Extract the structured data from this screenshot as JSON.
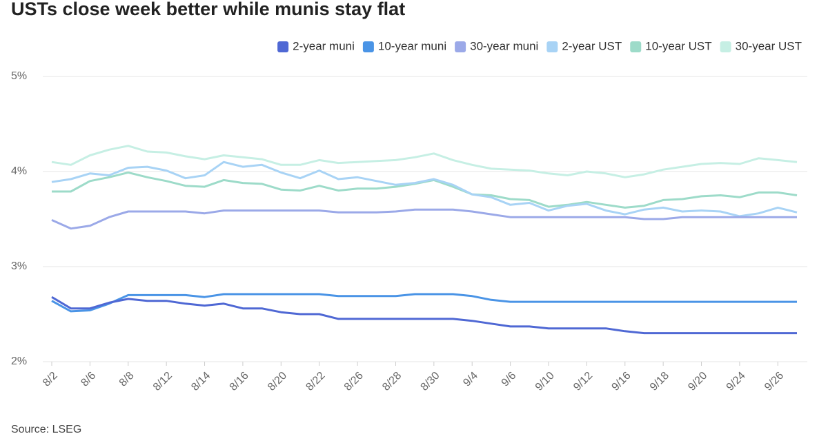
{
  "chart_data": {
    "type": "line",
    "title": "USTs close week better while munis stay flat",
    "source": "Source: LSEG",
    "categories": [
      "8/2",
      null,
      "8/6",
      null,
      "8/8",
      null,
      "8/12",
      null,
      "8/14",
      null,
      "8/16",
      null,
      "8/20",
      null,
      "8/22",
      null,
      "8/26",
      null,
      "8/28",
      null,
      "8/30",
      null,
      "9/4",
      null,
      "9/6",
      null,
      "9/10",
      null,
      "9/12",
      null,
      "9/16",
      null,
      "9/18",
      null,
      "9/20",
      null,
      "9/24",
      null,
      "9/26",
      null
    ],
    "ylim": [
      2,
      5
    ],
    "yticks": [
      {
        "value": 2,
        "label": "2%"
      },
      {
        "value": 3,
        "label": "3%"
      },
      {
        "value": 4,
        "label": "4%"
      },
      {
        "value": 5,
        "label": "5%"
      }
    ],
    "grid": true,
    "legend_position": "top-right",
    "series": [
      {
        "name": "2-year muni",
        "color": "#4f68d4",
        "values": [
          2.68,
          2.56,
          2.56,
          2.62,
          2.66,
          2.64,
          2.64,
          2.61,
          2.59,
          2.61,
          2.56,
          2.56,
          2.52,
          2.5,
          2.5,
          2.45,
          2.45,
          2.45,
          2.45,
          2.45,
          2.45,
          2.45,
          2.43,
          2.4,
          2.37,
          2.37,
          2.35,
          2.35,
          2.35,
          2.35,
          2.32,
          2.3,
          2.3,
          2.3,
          2.3,
          2.3,
          2.3,
          2.3,
          2.3,
          2.3
        ]
      },
      {
        "name": "10-year muni",
        "color": "#4a94e6",
        "values": [
          2.64,
          2.53,
          2.54,
          2.61,
          2.7,
          2.7,
          2.7,
          2.7,
          2.68,
          2.71,
          2.71,
          2.71,
          2.71,
          2.71,
          2.71,
          2.69,
          2.69,
          2.69,
          2.69,
          2.71,
          2.71,
          2.71,
          2.69,
          2.65,
          2.63,
          2.63,
          2.63,
          2.63,
          2.63,
          2.63,
          2.63,
          2.63,
          2.63,
          2.63,
          2.63,
          2.63,
          2.63,
          2.63,
          2.63,
          2.63
        ]
      },
      {
        "name": "30-year muni",
        "color": "#9ba9e8",
        "values": [
          3.49,
          3.4,
          3.43,
          3.52,
          3.58,
          3.58,
          3.58,
          3.58,
          3.56,
          3.59,
          3.59,
          3.59,
          3.59,
          3.59,
          3.59,
          3.57,
          3.57,
          3.57,
          3.58,
          3.6,
          3.6,
          3.6,
          3.58,
          3.55,
          3.52,
          3.52,
          3.52,
          3.52,
          3.52,
          3.52,
          3.52,
          3.5,
          3.5,
          3.52,
          3.52,
          3.52,
          3.52,
          3.52,
          3.52,
          3.52
        ]
      },
      {
        "name": "2-year UST",
        "color": "#a8d3f5",
        "values": [
          3.89,
          3.92,
          3.98,
          3.96,
          4.04,
          4.05,
          4.01,
          3.93,
          3.96,
          4.1,
          4.05,
          4.07,
          3.99,
          3.93,
          4.01,
          3.92,
          3.94,
          3.9,
          3.86,
          3.88,
          3.92,
          3.86,
          3.76,
          3.73,
          3.65,
          3.67,
          3.59,
          3.64,
          3.66,
          3.59,
          3.55,
          3.6,
          3.62,
          3.58,
          3.59,
          3.58,
          3.53,
          3.56,
          3.62,
          3.57
        ]
      },
      {
        "name": "10-year UST",
        "color": "#9ddbc9",
        "values": [
          3.79,
          3.79,
          3.9,
          3.94,
          3.99,
          3.94,
          3.9,
          3.85,
          3.84,
          3.91,
          3.88,
          3.87,
          3.81,
          3.8,
          3.85,
          3.8,
          3.82,
          3.82,
          3.84,
          3.87,
          3.91,
          3.84,
          3.76,
          3.75,
          3.71,
          3.7,
          3.63,
          3.65,
          3.68,
          3.65,
          3.62,
          3.64,
          3.7,
          3.71,
          3.74,
          3.75,
          3.73,
          3.78,
          3.78,
          3.75
        ]
      },
      {
        "name": "30-year UST",
        "color": "#c6efe4",
        "values": [
          4.1,
          4.07,
          4.17,
          4.23,
          4.27,
          4.21,
          4.2,
          4.16,
          4.13,
          4.17,
          4.15,
          4.13,
          4.07,
          4.07,
          4.12,
          4.09,
          4.1,
          4.11,
          4.12,
          4.15,
          4.19,
          4.12,
          4.07,
          4.03,
          4.02,
          4.01,
          3.98,
          3.96,
          4.0,
          3.98,
          3.94,
          3.97,
          4.02,
          4.05,
          4.08,
          4.09,
          4.08,
          4.14,
          4.12,
          4.1
        ]
      }
    ]
  }
}
